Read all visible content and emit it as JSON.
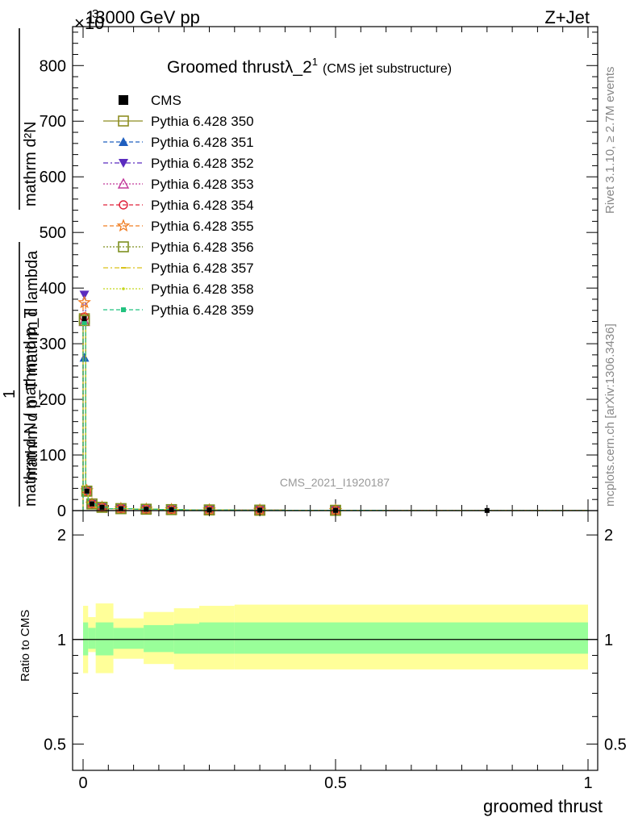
{
  "header": {
    "energy_label": "13000 GeV pp",
    "process_label": "Z+Jet",
    "exponent_label": "×10",
    "exponent_power": "3"
  },
  "side_labels": {
    "rivet": "Rivet 3.1.10, ≥ 2.7M events",
    "mcplots": "mcplots.cern.ch [arXiv:1306.3436]"
  },
  "colors": {
    "band_outer": "#ffff99",
    "band_inner": "#99ff99",
    "axis": "#000000"
  },
  "chart_data": [
    {
      "type": "line",
      "title": "Groomed thrustλ_2",
      "title_sup": "1",
      "subtitle": "(CMS jet substructure)",
      "watermark": "CMS_2021_I1920187",
      "ylabel_top": "mathrm d²N",
      "ylabel_mid": "mathrm d p_T mathrm d lambda",
      "ylabel_one": "1",
      "ylabel_bottom": "mathrm d N / mathrm d p_T",
      "xlabel": "groomed thrust",
      "xlim": [
        0,
        1
      ],
      "ylim": [
        0,
        870
      ],
      "y_ticks": [
        0,
        100,
        200,
        300,
        400,
        500,
        600,
        700,
        800
      ],
      "y_tick_labels": [
        "0",
        "100",
        "200",
        "300",
        "400",
        "500",
        "600",
        "700",
        "800"
      ],
      "x_ticks": [
        0,
        0.5,
        1
      ],
      "x_tick_labels": [
        "0",
        "0.5",
        "1"
      ],
      "x_edges": [
        0,
        0.005,
        0.01,
        0.025,
        0.05,
        0.1,
        0.15,
        0.2,
        0.3,
        0.4,
        0.6,
        1.0
      ],
      "data": {
        "name": "CMS",
        "x": [
          0.0025,
          0.0075,
          0.0175,
          0.0375,
          0.075,
          0.125,
          0.175,
          0.25,
          0.35,
          0.5,
          0.8
        ],
        "y": [
          345,
          35,
          12,
          6,
          3.5,
          2.5,
          1.8,
          1.2,
          0.8,
          0.5,
          0.2
        ]
      },
      "series": [
        {
          "name": "Pythia 6.428 350",
          "color": "#8d8d22",
          "dash": "",
          "marker": "open-square",
          "y": [
            345,
            35,
            12,
            6,
            3.5,
            2.5,
            1.8,
            1.2,
            0.8,
            0.5,
            0.2
          ]
        },
        {
          "name": "Pythia 6.428 351",
          "color": "#1f5fbf",
          "dash": "5,3",
          "marker": "filled-triangle-up",
          "y": [
            275,
            33,
            12,
            6,
            3.5,
            2.5,
            1.8,
            1.2,
            0.8,
            0.5,
            0.2
          ]
        },
        {
          "name": "Pythia 6.428 352",
          "color": "#5b2bbf",
          "dash": "6,3,2,3",
          "marker": "filled-triangle-down",
          "y": [
            388,
            36,
            12,
            6,
            3.5,
            2.5,
            1.8,
            1.2,
            0.8,
            0.5,
            0.2
          ]
        },
        {
          "name": "Pythia 6.428 353",
          "color": "#c2399b",
          "dash": "2,2",
          "marker": "open-triangle-up",
          "y": [
            340,
            34,
            12,
            6,
            3.5,
            2.5,
            1.8,
            1.2,
            0.8,
            0.5,
            0.2
          ]
        },
        {
          "name": "Pythia 6.428 354",
          "color": "#e0203a",
          "dash": "5,3",
          "marker": "open-circle",
          "y": [
            348,
            35,
            12,
            6,
            3.5,
            2.5,
            1.8,
            1.2,
            0.8,
            0.5,
            0.2
          ]
        },
        {
          "name": "Pythia 6.428 355",
          "color": "#f07d22",
          "dash": "5,3",
          "marker": "open-star",
          "y": [
            374,
            36,
            12,
            6,
            3.5,
            2.5,
            1.8,
            1.2,
            0.8,
            0.5,
            0.2
          ]
        },
        {
          "name": "Pythia 6.428 356",
          "color": "#7d8f1f",
          "dash": "2,2",
          "marker": "open-square",
          "y": [
            342,
            35,
            12,
            6,
            3.5,
            2.5,
            1.8,
            1.2,
            0.8,
            0.5,
            0.2
          ]
        },
        {
          "name": "Pythia 6.428 357",
          "color": "#d9c21a",
          "dash": "6,3,2,3",
          "marker": "small-dash",
          "y": [
            344,
            35,
            12,
            6,
            3.5,
            2.5,
            1.8,
            1.2,
            0.8,
            0.5,
            0.2
          ]
        },
        {
          "name": "Pythia 6.428 358",
          "color": "#c4d61a",
          "dash": "2,2",
          "marker": "small-dot",
          "y": [
            346,
            35,
            12,
            6,
            3.5,
            2.5,
            1.8,
            1.2,
            0.8,
            0.5,
            0.2
          ]
        },
        {
          "name": "Pythia 6.428 359",
          "color": "#22c27f",
          "dash": "5,3",
          "marker": "filled-square-small",
          "y": [
            338,
            35,
            12,
            6,
            3.5,
            2.5,
            1.8,
            1.2,
            0.8,
            0.5,
            0.2
          ]
        }
      ]
    },
    {
      "type": "area",
      "ylabel": "Ratio to CMS",
      "xlabel": "groomed thrust",
      "xlim": [
        0,
        1
      ],
      "ylim": [
        0.42,
        2.35
      ],
      "log_y": true,
      "y_ticks": [
        0.5,
        1,
        2
      ],
      "y_tick_labels": [
        "0.5",
        "1",
        "2"
      ],
      "x_ticks": [
        0,
        0.5,
        1
      ],
      "x_tick_labels": [
        "0",
        "0.5",
        "1"
      ],
      "x_edges": [
        0,
        0.01,
        0.025,
        0.06,
        0.12,
        0.18,
        0.23,
        0.3,
        1.0
      ],
      "outer_band": {
        "low": [
          0.8,
          0.92,
          0.8,
          0.88,
          0.85,
          0.82,
          0.82,
          0.82
        ],
        "high": [
          1.25,
          1.16,
          1.27,
          1.15,
          1.2,
          1.23,
          1.25,
          1.26
        ]
      },
      "inner_band": {
        "low": [
          0.9,
          0.94,
          0.9,
          0.94,
          0.92,
          0.91,
          0.91,
          0.91
        ],
        "high": [
          1.12,
          1.08,
          1.12,
          1.08,
          1.1,
          1.11,
          1.12,
          1.12
        ]
      },
      "reference": 1
    }
  ]
}
